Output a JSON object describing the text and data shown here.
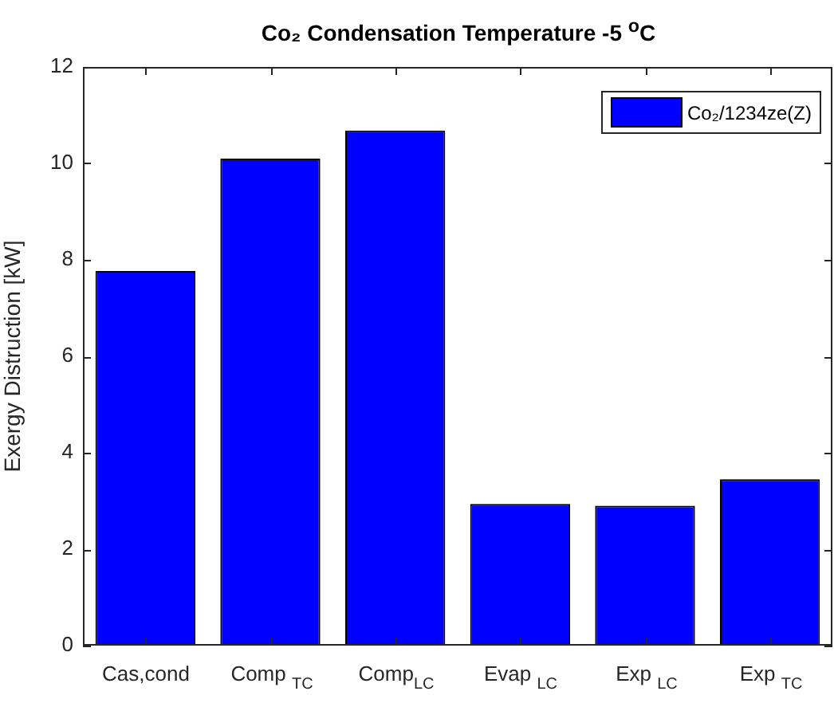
{
  "chart_data": {
    "type": "bar",
    "title": "Co₂ Condensation Temperature -5 $^{o}$C",
    "ylabel": "Exergy Distruction [kW]",
    "categories": [
      "Cas,cond",
      "Comp $_{TC}$",
      "Comp$_{LC}$",
      "Evap $_{LC}$",
      "Exp $_{LC}$",
      "Exp $_{TC}$"
    ],
    "series": [
      {
        "name": "Co₂/1234ze(Z)",
        "color": "#0000ff",
        "values": [
          7.77,
          10.1,
          10.68,
          2.94,
          2.9,
          3.45
        ]
      }
    ],
    "ylim": [
      0,
      12
    ],
    "yticks": [
      0,
      2,
      4,
      6,
      8,
      10,
      12
    ],
    "grid": false,
    "legend": "top right"
  }
}
